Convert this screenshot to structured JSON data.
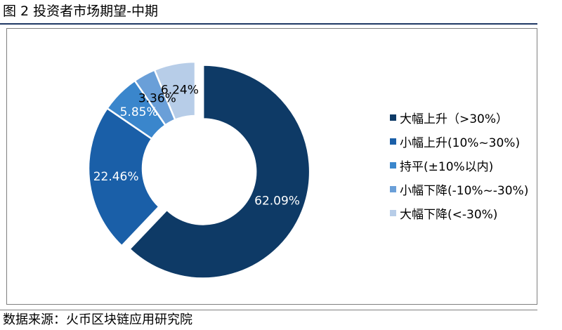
{
  "figure": {
    "title": "图 2 投资者市场期望-中期",
    "source": "数据来源：火币区块链应用研究院"
  },
  "chart_data": {
    "type": "pie",
    "variant": "donut",
    "categories": [
      "大幅上升（>30%）",
      "小幅上升(10%~30%)",
      "持平(±10%以内)",
      "小幅下降(-10%~-30%)",
      "大幅下降(<-30%)"
    ],
    "values": [
      62.09,
      22.46,
      5.85,
      3.36,
      6.24
    ],
    "value_labels": [
      "62.09%",
      "22.46%",
      "5.85%",
      "3.36%",
      "6.24%"
    ],
    "colors": [
      "#0e3a66",
      "#1a5fa8",
      "#3a86cc",
      "#6a9fd8",
      "#b7cde8"
    ],
    "value_label_colors": [
      "#ffffff",
      "#ffffff",
      "#ffffff",
      "#000000",
      "#000000"
    ],
    "exploded_slice": 0,
    "legend_position": "right"
  }
}
